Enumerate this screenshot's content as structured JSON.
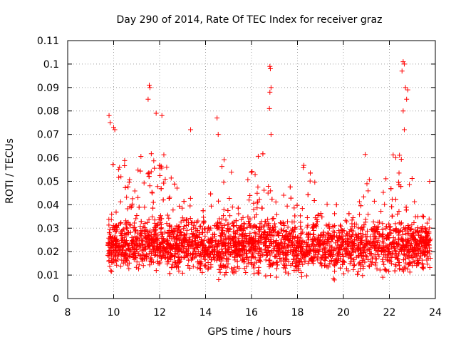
{
  "chart_data": {
    "type": "scatter",
    "title": "Day 290 of 2014, Rate Of TEC Index for receiver graz",
    "xlabel": "GPS time / hours",
    "ylabel": "ROTI / TECUs",
    "xlim": [
      8,
      24
    ],
    "ylim": [
      0,
      0.11
    ],
    "x_ticks": [
      8,
      10,
      12,
      14,
      16,
      18,
      20,
      22,
      24
    ],
    "x_tick_labels": [
      "8",
      "10",
      "12",
      "14",
      "16",
      "18",
      "20",
      "22",
      "24"
    ],
    "y_ticks": [
      0,
      0.01,
      0.02,
      0.03,
      0.04,
      0.05,
      0.06,
      0.07,
      0.08,
      0.09,
      0.1,
      0.11
    ],
    "y_tick_labels": [
      "0",
      "0.01",
      "0.02",
      "0.03",
      "0.04",
      "0.05",
      "0.06",
      "0.07",
      "0.08",
      "0.09",
      "0.1",
      "0.11"
    ],
    "grid": true,
    "marker": "+",
    "series": [
      {
        "name": "ROTI",
        "color": "#ff0000",
        "data_range_hours": [
          9.75,
          23.8
        ],
        "notable_points": [
          {
            "x": 9.8,
            "y": 0.078
          },
          {
            "x": 9.85,
            "y": 0.075
          },
          {
            "x": 10.0,
            "y": 0.073
          },
          {
            "x": 10.05,
            "y": 0.072
          },
          {
            "x": 11.55,
            "y": 0.091
          },
          {
            "x": 11.58,
            "y": 0.09
          },
          {
            "x": 11.5,
            "y": 0.085
          },
          {
            "x": 11.85,
            "y": 0.079
          },
          {
            "x": 12.1,
            "y": 0.078
          },
          {
            "x": 13.35,
            "y": 0.072
          },
          {
            "x": 14.5,
            "y": 0.077
          },
          {
            "x": 14.55,
            "y": 0.07
          },
          {
            "x": 16.8,
            "y": 0.099
          },
          {
            "x": 16.82,
            "y": 0.098
          },
          {
            "x": 16.85,
            "y": 0.09
          },
          {
            "x": 16.8,
            "y": 0.088
          },
          {
            "x": 16.78,
            "y": 0.081
          },
          {
            "x": 16.85,
            "y": 0.07
          },
          {
            "x": 22.6,
            "y": 0.101
          },
          {
            "x": 22.65,
            "y": 0.1
          },
          {
            "x": 22.55,
            "y": 0.097
          },
          {
            "x": 22.7,
            "y": 0.09
          },
          {
            "x": 22.8,
            "y": 0.089
          },
          {
            "x": 22.75,
            "y": 0.085
          },
          {
            "x": 22.6,
            "y": 0.08
          },
          {
            "x": 22.65,
            "y": 0.072
          },
          {
            "x": 23.75,
            "y": 0.05
          }
        ]
      }
    ]
  }
}
